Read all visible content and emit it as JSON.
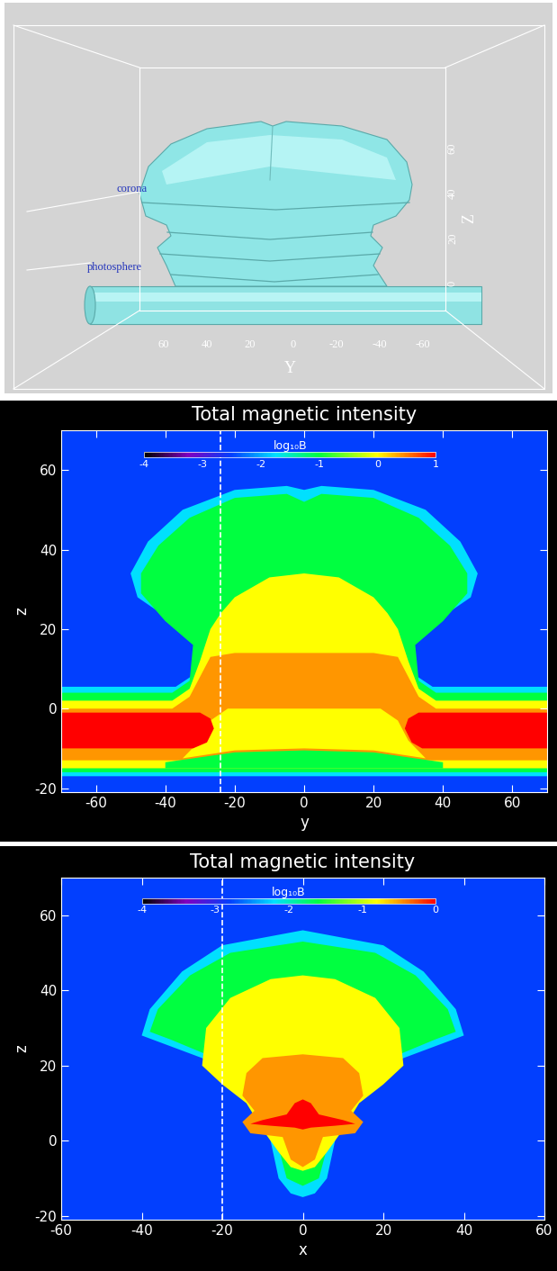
{
  "render": {
    "type": "isosurface",
    "labels": [
      "corona",
      "photosphere"
    ],
    "axis_labels": [
      "Y",
      "Z"
    ],
    "yticks": [
      60,
      40,
      20,
      0,
      -20,
      -40,
      -60
    ],
    "zticks": [
      0,
      20,
      40,
      60
    ]
  },
  "chart_data": [
    {
      "type": "contour",
      "title": "Total magnetic intensity",
      "xlabel": "y",
      "ylabel": "z",
      "xlim": [
        -70,
        70
      ],
      "ylim": [
        -21,
        70
      ],
      "xticks": [
        -60,
        -40,
        -20,
        0,
        20,
        40,
        60
      ],
      "yticks": [
        -20,
        0,
        20,
        40,
        60
      ],
      "colorbar": {
        "label": "log₁₀B",
        "range": [
          -4,
          1
        ],
        "ticks": [
          -4,
          -3,
          -2,
          -1,
          0,
          1
        ]
      },
      "dashed_line_at": -24,
      "regions": [
        {
          "level": -2.5,
          "polygon": [
            [
              -70,
              -21
            ],
            [
              70,
              -21
            ],
            [
              70,
              70
            ],
            [
              -70,
              70
            ]
          ]
        },
        {
          "level": -1.75,
          "polygon": [
            [
              -70,
              5.5
            ],
            [
              -37,
              5.5
            ],
            [
              -31,
              9
            ],
            [
              -30,
              17
            ],
            [
              -38,
              22
            ],
            [
              -48,
              28
            ],
            [
              -50,
              34
            ],
            [
              -45,
              42
            ],
            [
              -35,
              50
            ],
            [
              -20,
              55
            ],
            [
              -5,
              56
            ],
            [
              0,
              55
            ],
            [
              5,
              56
            ],
            [
              20,
              55
            ],
            [
              35,
              50
            ],
            [
              45,
              42
            ],
            [
              50,
              34
            ],
            [
              48,
              28
            ],
            [
              38,
              22
            ],
            [
              30,
              17
            ],
            [
              31,
              9
            ],
            [
              37,
              5.5
            ],
            [
              70,
              5.5
            ],
            [
              70,
              -17
            ],
            [
              -70,
              -17
            ]
          ]
        },
        {
          "level": -1,
          "polygon": [
            [
              -70,
              4
            ],
            [
              -38,
              4
            ],
            [
              -33,
              7
            ],
            [
              -32,
              16
            ],
            [
              -40,
              22
            ],
            [
              -47,
              29
            ],
            [
              -47,
              34
            ],
            [
              -42,
              41
            ],
            [
              -33,
              48
            ],
            [
              -20,
              53
            ],
            [
              -5,
              54
            ],
            [
              0,
              52
            ],
            [
              5,
              54
            ],
            [
              20,
              53
            ],
            [
              33,
              48
            ],
            [
              42,
              41
            ],
            [
              47,
              34
            ],
            [
              47,
              29
            ],
            [
              40,
              22
            ],
            [
              32,
              16
            ],
            [
              33,
              7
            ],
            [
              38,
              4
            ],
            [
              70,
              4
            ],
            [
              70,
              -16
            ],
            [
              -70,
              -16
            ]
          ]
        },
        {
          "level": 0,
          "polygon": [
            [
              -70,
              2
            ],
            [
              -38,
              2
            ],
            [
              -33,
              5
            ],
            [
              -30,
              12
            ],
            [
              -27,
              20
            ],
            [
              -24,
              24
            ],
            [
              -20,
              28
            ],
            [
              -10,
              33
            ],
            [
              0,
              34
            ],
            [
              10,
              33
            ],
            [
              20,
              28
            ],
            [
              24,
              24
            ],
            [
              27,
              20
            ],
            [
              30,
              12
            ],
            [
              33,
              5
            ],
            [
              38,
              2
            ],
            [
              70,
              2
            ],
            [
              70,
              -15
            ],
            [
              -70,
              -15
            ]
          ]
        },
        {
          "level": 0.4,
          "polygon": [
            [
              -70,
              0
            ],
            [
              -38,
              0
            ],
            [
              -33,
              3
            ],
            [
              -30,
              8
            ],
            [
              -27,
              13
            ],
            [
              -20,
              14
            ],
            [
              20,
              14
            ],
            [
              27,
              13
            ],
            [
              30,
              8
            ],
            [
              33,
              3
            ],
            [
              38,
              0
            ],
            [
              70,
              0
            ],
            [
              70,
              -13
            ],
            [
              -70,
              -13
            ]
          ]
        },
        {
          "level": -1,
          "polygon": [
            [
              -40,
              -13.5
            ],
            [
              -20,
              -11
            ],
            [
              0,
              -10.5
            ],
            [
              20,
              -11
            ],
            [
              40,
              -13.5
            ],
            [
              40,
              -15
            ],
            [
              -40,
              -15
            ]
          ]
        },
        {
          "level": 0,
          "polygon": [
            [
              -35,
              -12.5
            ],
            [
              -20,
              -10.5
            ],
            [
              0,
              -10
            ],
            [
              20,
              -10.5
            ],
            [
              35,
              -12.5
            ],
            [
              30,
              -8
            ],
            [
              27,
              -3
            ],
            [
              22,
              0
            ],
            [
              -22,
              0
            ],
            [
              -27,
              -3
            ],
            [
              -30,
              -8
            ]
          ]
        },
        {
          "level": 1,
          "polygon": [
            [
              -70,
              -10
            ],
            [
              -32,
              -10
            ],
            [
              -28,
              -8.5
            ],
            [
              -26,
              -5
            ],
            [
              -27,
              -2.5
            ],
            [
              -30,
              -1
            ],
            [
              -70,
              -1
            ]
          ]
        },
        {
          "level": 1,
          "polygon": [
            [
              70,
              -10
            ],
            [
              34,
              -10
            ],
            [
              31,
              -8.5
            ],
            [
              29,
              -5
            ],
            [
              30,
              -2.5
            ],
            [
              33,
              -1
            ],
            [
              70,
              -1
            ]
          ]
        }
      ]
    },
    {
      "type": "contour",
      "title": "Total magnetic intensity",
      "xlabel": "x",
      "ylabel": "z",
      "xlim": [
        -60,
        60
      ],
      "ylim": [
        -21,
        70
      ],
      "xticks": [
        -60,
        -40,
        -20,
        0,
        20,
        40,
        60
      ],
      "yticks": [
        -20,
        0,
        20,
        40,
        60
      ],
      "colorbar": {
        "label": "log₁₀B",
        "range": [
          -4,
          0
        ],
        "ticks": [
          -4,
          -3,
          -2,
          -1,
          0
        ]
      },
      "dashed_line_at": -20,
      "regions": [
        {
          "level": -2.8,
          "polygon": [
            [
              -60,
              -21
            ],
            [
              60,
              -21
            ],
            [
              60,
              70
            ],
            [
              -60,
              70
            ]
          ]
        },
        {
          "level": -2.2,
          "polygon": [
            [
              -40,
              28
            ],
            [
              -38,
              35
            ],
            [
              -30,
              45
            ],
            [
              -20,
              52
            ],
            [
              0,
              56
            ],
            [
              20,
              52
            ],
            [
              30,
              45
            ],
            [
              38,
              35
            ],
            [
              40,
              28
            ],
            [
              35,
              26
            ],
            [
              25,
              22
            ],
            [
              15,
              15
            ],
            [
              12,
              10
            ],
            [
              8,
              0
            ],
            [
              6,
              -10
            ],
            [
              3,
              -14
            ],
            [
              0,
              -15
            ],
            [
              -3,
              -14
            ],
            [
              -6,
              -10
            ],
            [
              -8,
              0
            ],
            [
              -12,
              10
            ],
            [
              -15,
              15
            ],
            [
              -25,
              22
            ],
            [
              -35,
              26
            ]
          ]
        },
        {
          "level": -1.6,
          "polygon": [
            [
              -38,
              29
            ],
            [
              -36,
              35
            ],
            [
              -28,
              44
            ],
            [
              -18,
              50
            ],
            [
              0,
              53
            ],
            [
              18,
              50
            ],
            [
              28,
              44
            ],
            [
              36,
              35
            ],
            [
              38,
              29
            ],
            [
              33,
              27
            ],
            [
              24,
              23
            ],
            [
              13,
              14
            ],
            [
              10,
              8
            ],
            [
              6,
              -2
            ],
            [
              4,
              -10
            ],
            [
              0,
              -12
            ],
            [
              -4,
              -10
            ],
            [
              -6,
              -2
            ],
            [
              -10,
              8
            ],
            [
              -13,
              14
            ],
            [
              -24,
              23
            ],
            [
              -33,
              27
            ]
          ]
        },
        {
          "level": -0.8,
          "polygon": [
            [
              -25,
              20
            ],
            [
              -24,
              30
            ],
            [
              -18,
              38
            ],
            [
              -8,
              43
            ],
            [
              0,
              44
            ],
            [
              8,
              43
            ],
            [
              18,
              38
            ],
            [
              24,
              30
            ],
            [
              25,
              20
            ],
            [
              20,
              15
            ],
            [
              14,
              10
            ],
            [
              10,
              3
            ],
            [
              6,
              -3
            ],
            [
              3,
              -7
            ],
            [
              0,
              -8
            ],
            [
              -3,
              -7
            ],
            [
              -6,
              -3
            ],
            [
              -10,
              3
            ],
            [
              -14,
              10
            ],
            [
              -20,
              15
            ]
          ]
        },
        {
          "level": -0.48,
          "polygon": [
            [
              -15,
              12
            ],
            [
              -14,
              18
            ],
            [
              -10,
              22
            ],
            [
              0,
              23
            ],
            [
              10,
              22
            ],
            [
              14,
              18
            ],
            [
              15,
              12
            ],
            [
              12,
              8
            ],
            [
              15,
              5
            ],
            [
              13,
              2
            ],
            [
              5,
              1
            ],
            [
              3,
              -5
            ],
            [
              0,
              -7
            ],
            [
              -3,
              -5
            ],
            [
              -5,
              1
            ],
            [
              -13,
              2
            ],
            [
              -15,
              5
            ],
            [
              -12,
              8
            ]
          ]
        },
        {
          "level": 0,
          "polygon": [
            [
              -13,
              4.5
            ],
            [
              -10,
              5.5
            ],
            [
              -4,
              7
            ],
            [
              -2,
              10
            ],
            [
              0,
              11
            ],
            [
              2,
              10
            ],
            [
              4,
              7
            ],
            [
              10,
              5.5
            ],
            [
              13,
              4.5
            ],
            [
              8,
              4
            ],
            [
              2,
              3.5
            ],
            [
              0,
              3
            ],
            [
              -2,
              3.5
            ],
            [
              -8,
              4
            ]
          ]
        }
      ]
    }
  ]
}
